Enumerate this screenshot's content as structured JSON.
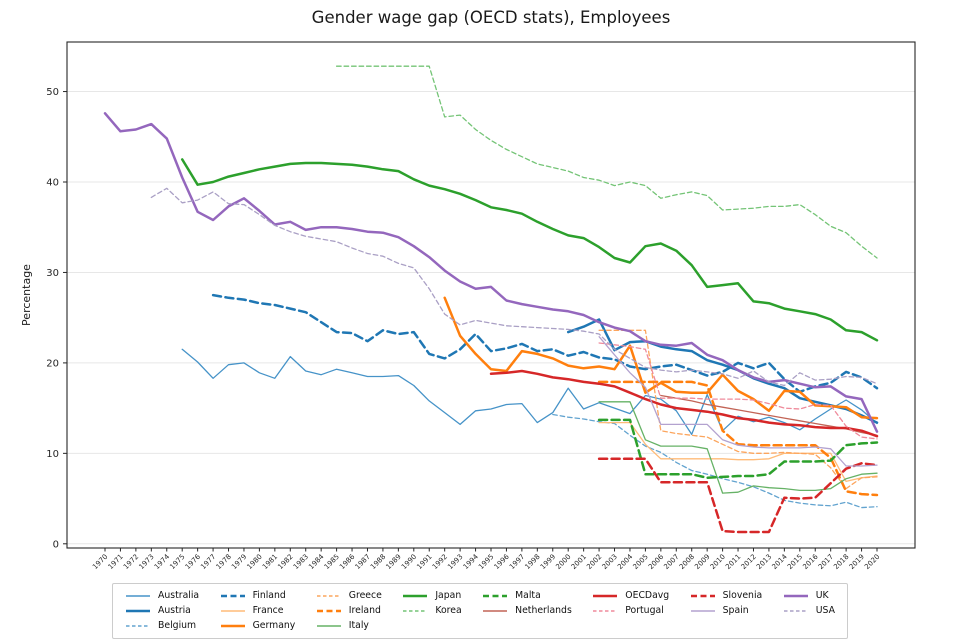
{
  "title": "Gender wage gap (OECD stats), Employees",
  "chart_data": {
    "type": "line",
    "title": "Gender wage gap (OECD stats), Employees",
    "xlabel": "",
    "ylabel": "Percentage",
    "x_years": {
      "start": 1970,
      "end": 2020,
      "tick_every": 1
    },
    "ylim": [
      -0.5,
      55.5
    ],
    "yticks": [
      0,
      10,
      20,
      30,
      40,
      50
    ],
    "grid": "horizontal",
    "legend_position": "bottom",
    "axis_color": "#262626",
    "grid_color": "#e7e7e7",
    "tick_label_color": "#262626",
    "series": [
      {
        "name": "Australia",
        "color": "#4693c8",
        "thick": false,
        "dash": false,
        "start_year": 1975,
        "values": [
          21.5,
          20.1,
          18.3,
          19.8,
          20.0,
          18.9,
          18.3,
          20.7,
          19.1,
          18.7,
          19.3,
          18.9,
          18.5,
          18.5,
          18.6,
          17.5,
          15.8,
          14.5,
          13.2,
          14.7,
          14.9,
          15.4,
          15.5,
          13.4,
          14.5,
          17.2,
          14.9,
          15.6,
          15.0,
          14.4,
          16.4,
          16.0,
          14.7,
          12.1,
          16.5,
          12.5,
          14.1,
          13.5,
          14.0,
          13.4,
          12.6,
          13.8,
          14.9,
          15.9,
          14.8,
          13.3
        ]
      },
      {
        "name": "Austria",
        "color": "#1f77b4",
        "thick": true,
        "dash": false,
        "start_year": 2000,
        "values": [
          23.4,
          24.0,
          24.8,
          21.4,
          22.3,
          22.4,
          21.8,
          21.5,
          21.3,
          20.3,
          19.8,
          19.2,
          18.3,
          17.7,
          17.2,
          16.1,
          15.7,
          15.3,
          14.9,
          14.2,
          13.4
        ]
      },
      {
        "name": "Belgium",
        "color": "#62a3cf",
        "thick": false,
        "dash": true,
        "start_year": 1999,
        "values": [
          14.3,
          14.0,
          13.8,
          13.5,
          13.3,
          12.0,
          10.8,
          10.1,
          9.0,
          8.1,
          7.7,
          7.2,
          6.8,
          6.3,
          5.6,
          4.8,
          4.5,
          4.3,
          4.2,
          4.6,
          4.0,
          4.1
        ]
      },
      {
        "name": "Finland",
        "color": "#1f77b4",
        "thick": true,
        "dash": true,
        "start_year": 1977,
        "values": [
          27.5,
          27.2,
          27.0,
          26.6,
          26.4,
          26.0,
          25.6,
          24.5,
          23.4,
          23.3,
          22.4,
          23.6,
          23.2,
          23.4,
          21.0,
          20.5,
          21.5,
          23.2,
          21.3,
          21.6,
          22.1,
          21.3,
          21.5,
          20.8,
          21.2,
          20.6,
          20.4,
          19.6,
          19.3,
          19.6,
          19.8,
          19.2,
          18.6,
          19.0,
          20.0,
          19.4,
          20.0,
          18.2,
          16.8,
          17.4,
          17.8,
          19.0,
          18.4,
          17.2
        ]
      },
      {
        "name": "France",
        "color": "#ffbb78",
        "thick": false,
        "dash": false,
        "start_year": 2002,
        "values": [
          13.4,
          13.4,
          13.4,
          11.0,
          9.4,
          9.4,
          9.4,
          9.4,
          9.4,
          9.3,
          9.3,
          9.4,
          10.0,
          10.0,
          10.0,
          10.0,
          6.9,
          7.3,
          7.5
        ]
      },
      {
        "name": "Germany",
        "color": "#ff7f0e",
        "thick": true,
        "dash": false,
        "start_year": 1992,
        "values": [
          27.2,
          23.0,
          21.0,
          19.3,
          19.1,
          21.3,
          21.0,
          20.5,
          19.7,
          19.4,
          19.6,
          19.3,
          21.9,
          16.7,
          17.8,
          16.8,
          16.7,
          16.7,
          18.7,
          16.9,
          16.0,
          14.7,
          16.9,
          16.8,
          15.3,
          15.2,
          15.1,
          14.0,
          13.9
        ]
      },
      {
        "name": "Greece",
        "color": "#fca55d",
        "thick": false,
        "dash": true,
        "start_year": 2002,
        "values": [
          23.6,
          23.6,
          23.6,
          23.6,
          12.5,
          12.2,
          12.0,
          11.8,
          11.0,
          10.2,
          10.0,
          10.0,
          10.1,
          10.0,
          9.9,
          8.4,
          6.1,
          7.3,
          7.4
        ]
      },
      {
        "name": "Ireland",
        "color": "#ff7f0e",
        "thick": true,
        "dash": true,
        "start_year": 2002,
        "values": [
          17.9,
          17.9,
          17.9,
          17.9,
          17.9,
          17.9,
          17.9,
          17.5,
          12.5,
          11.0,
          10.9,
          10.9,
          10.9,
          10.9,
          10.9,
          9.5,
          5.8,
          5.5,
          5.4
        ]
      },
      {
        "name": "Italy",
        "color": "#66b266",
        "thick": false,
        "dash": false,
        "start_year": 2002,
        "values": [
          15.7,
          15.7,
          15.7,
          11.5,
          10.8,
          10.8,
          10.8,
          10.5,
          5.6,
          5.7,
          6.4,
          6.2,
          6.1,
          5.9,
          5.9,
          6.1,
          7.2,
          7.7,
          7.8
        ]
      },
      {
        "name": "Japan",
        "color": "#2ca02c",
        "thick": true,
        "dash": false,
        "start_year": 1975,
        "values": [
          42.5,
          39.7,
          40.0,
          40.6,
          41.0,
          41.4,
          41.7,
          42.0,
          42.1,
          42.1,
          42.0,
          41.9,
          41.7,
          41.4,
          41.2,
          40.3,
          39.6,
          39.2,
          38.7,
          38.0,
          37.2,
          36.9,
          36.5,
          35.6,
          34.8,
          34.1,
          33.8,
          32.8,
          31.6,
          31.1,
          32.9,
          33.2,
          32.4,
          30.8,
          28.4,
          28.6,
          28.8,
          26.8,
          26.6,
          26.0,
          25.7,
          25.4,
          24.8,
          23.6,
          23.4,
          22.5
        ]
      },
      {
        "name": "Korea",
        "color": "#74c476",
        "thick": false,
        "dash": true,
        "start_year": 1985,
        "values": [
          52.8,
          52.8,
          52.8,
          52.8,
          52.8,
          52.8,
          52.8,
          47.2,
          47.4,
          45.8,
          44.6,
          43.6,
          42.8,
          42.0,
          41.6,
          41.2,
          40.5,
          40.2,
          39.6,
          40.0,
          39.6,
          38.2,
          38.6,
          38.9,
          38.5,
          36.9,
          37.0,
          37.1,
          37.3,
          37.3,
          37.5,
          36.4,
          35.1,
          34.4,
          32.9,
          31.6
        ]
      },
      {
        "name": "Malta",
        "color": "#2ca02c",
        "thick": true,
        "dash": true,
        "start_year": 2002,
        "values": [
          13.7,
          13.7,
          13.7,
          7.7,
          7.7,
          7.7,
          7.7,
          7.3,
          7.4,
          7.5,
          7.5,
          7.7,
          9.1,
          9.1,
          9.1,
          9.2,
          10.9,
          11.1,
          11.2
        ]
      },
      {
        "name": "Netherlands",
        "color": "#c26456",
        "thick": false,
        "dash": false,
        "start_year": 2006,
        "values": [
          16.4,
          16.1,
          15.8,
          15.4,
          15.1,
          14.8,
          14.5,
          14.2,
          13.9,
          13.6,
          13.3,
          13.0,
          12.7,
          12.3,
          12.0
        ]
      },
      {
        "name": "OECDavg",
        "color": "#d62728",
        "thick": true,
        "dash": false,
        "start_year": 1995,
        "values": [
          18.8,
          18.9,
          19.1,
          18.8,
          18.4,
          18.2,
          17.9,
          17.7,
          17.4,
          16.7,
          16.0,
          15.4,
          15.0,
          14.8,
          14.6,
          14.3,
          13.9,
          13.7,
          13.4,
          13.2,
          13.1,
          12.9,
          12.8,
          12.8,
          12.5,
          11.9
        ]
      },
      {
        "name": "Portugal",
        "color": "#ef8a9b",
        "thick": false,
        "dash": true,
        "start_year": 2002,
        "values": [
          22.2,
          22.0,
          21.8,
          21.5,
          16.1,
          16.1,
          16.1,
          16.0,
          16.0,
          16.0,
          15.9,
          15.5,
          15.0,
          14.9,
          15.4,
          15.3,
          13.0,
          11.8,
          11.6
        ]
      },
      {
        "name": "Slovenia",
        "color": "#d62728",
        "thick": true,
        "dash": true,
        "start_year": 2002,
        "values": [
          9.4,
          9.4,
          9.4,
          9.4,
          6.8,
          6.8,
          6.8,
          6.8,
          1.4,
          1.3,
          1.3,
          1.3,
          5.1,
          5.0,
          5.1,
          6.7,
          8.3,
          8.9,
          8.7
        ]
      },
      {
        "name": "Spain",
        "color": "#b3a2cf",
        "thick": false,
        "dash": false,
        "start_year": 2002,
        "values": [
          22.9,
          20.9,
          18.9,
          17.3,
          13.2,
          13.2,
          13.2,
          13.2,
          11.5,
          10.9,
          10.7,
          10.6,
          10.6,
          10.6,
          10.7,
          10.5,
          8.6,
          8.6,
          8.7
        ]
      },
      {
        "name": "UK",
        "color": "#9467bd",
        "thick": true,
        "dash": false,
        "start_year": 1970,
        "values": [
          47.6,
          45.6,
          45.8,
          46.4,
          44.8,
          40.5,
          36.7,
          35.8,
          37.3,
          38.2,
          36.8,
          35.3,
          35.6,
          34.7,
          35.0,
          35.0,
          34.8,
          34.5,
          34.4,
          33.9,
          32.9,
          31.7,
          30.2,
          29.0,
          28.2,
          28.4,
          26.9,
          26.5,
          26.2,
          25.9,
          25.7,
          25.3,
          24.5,
          23.9,
          23.5,
          22.4,
          22.0,
          21.9,
          22.2,
          20.9,
          20.3,
          19.2,
          18.4,
          17.9,
          18.1,
          17.7,
          17.3,
          17.4,
          16.3,
          16.0,
          12.4
        ]
      },
      {
        "name": "USA",
        "color": "#aaa0c5",
        "thick": false,
        "dash": true,
        "start_year": 1973,
        "values": [
          38.3,
          39.3,
          37.7,
          38.0,
          38.9,
          37.6,
          37.5,
          36.4,
          35.2,
          34.5,
          34.0,
          33.7,
          33.4,
          32.7,
          32.1,
          31.8,
          31.0,
          30.5,
          28.2,
          25.4,
          24.2,
          24.7,
          24.4,
          24.1,
          24.0,
          23.9,
          23.8,
          23.7,
          23.5,
          23.2,
          21.5,
          20.5,
          19.5,
          19.2,
          19.0,
          19.2,
          19.0,
          18.8,
          18.3,
          19.1,
          17.9,
          17.5,
          18.9,
          18.1,
          18.2,
          18.5,
          18.4,
          17.7
        ]
      }
    ]
  },
  "legend": {
    "columns": [
      [
        "Australia",
        "Austria",
        "Belgium"
      ],
      [
        "Finland",
        "France",
        "Germany"
      ],
      [
        "Greece",
        "Ireland",
        "Italy"
      ],
      [
        "Japan",
        "Korea"
      ],
      [
        "Malta",
        "Netherlands"
      ],
      [
        "OECDavg",
        "Portugal"
      ],
      [
        "Slovenia",
        "Spain"
      ],
      [
        "UK",
        "USA"
      ]
    ]
  }
}
